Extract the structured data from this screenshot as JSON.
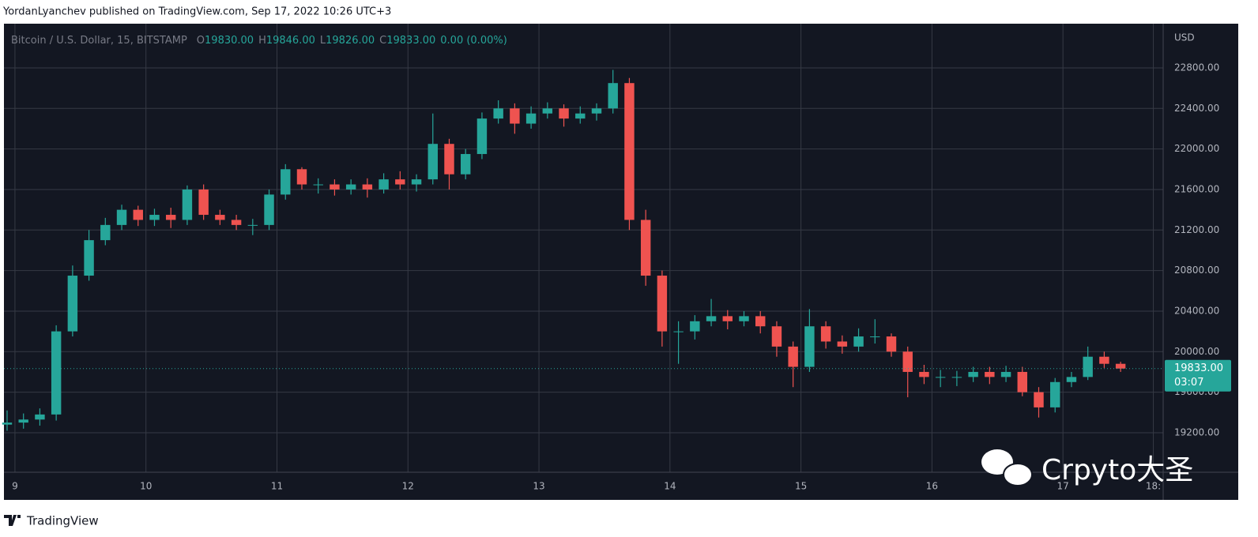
{
  "header": "YordanLyanchev published on TradingView.com, Sep 17, 2022 10:26 UTC+3",
  "footer": "TradingView",
  "watermark": "Crpyto大圣",
  "chart_data": {
    "type": "candlestick",
    "symbol": "Bitcoin / U.S. Dollar, 15, BITSTAMP",
    "legend": [
      {
        "key": "O",
        "text": "19830.00"
      },
      {
        "key": "H",
        "text": "19846.00"
      },
      {
        "key": "L",
        "text": "19826.00"
      },
      {
        "key": "C",
        "text": "19833.00"
      }
    ],
    "change": "0.00 (0.00%)",
    "y_axis_label": "USD",
    "x": [
      8.94,
      9.065,
      9.19,
      9.315,
      9.44,
      9.565,
      9.69,
      9.815,
      9.94,
      10.065,
      10.19,
      10.315,
      10.44,
      10.565,
      10.69,
      10.815,
      10.94,
      11.065,
      11.19,
      11.315,
      11.44,
      11.565,
      11.69,
      11.815,
      11.94,
      12.065,
      12.19,
      12.315,
      12.44,
      12.565,
      12.69,
      12.815,
      12.94,
      13.065,
      13.19,
      13.315,
      13.44,
      13.565,
      13.69,
      13.815,
      13.94,
      14.065,
      14.19,
      14.315,
      14.44,
      14.565,
      14.69,
      14.815,
      14.94,
      15.065,
      15.19,
      15.315,
      15.44,
      15.565,
      15.69,
      15.815,
      15.94,
      16.065,
      16.19,
      16.315,
      16.44,
      16.565,
      16.69,
      16.815,
      16.94,
      17.065,
      17.19,
      17.315,
      17.44
    ],
    "open": [
      19280,
      19300,
      19330,
      19380,
      20200,
      20750,
      21100,
      21250,
      21400,
      21300,
      21350,
      21300,
      21600,
      21350,
      21300,
      21250,
      21250,
      21550,
      21800,
      21650,
      21650,
      21600,
      21650,
      21600,
      21700,
      21650,
      21700,
      22050,
      21750,
      21950,
      22300,
      22400,
      22250,
      22350,
      22400,
      22300,
      22350,
      22400,
      22650,
      21300,
      20750,
      20200,
      20200,
      20300,
      20350,
      20300,
      20350,
      20250,
      20050,
      19850,
      20250,
      20100,
      20050,
      20150,
      20150,
      20000,
      19800,
      19750,
      19750,
      19750,
      19800,
      19750,
      19800,
      19600,
      19450,
      19700,
      19750,
      19950,
      19880
    ],
    "high": [
      19420,
      19390,
      19440,
      20260,
      20850,
      21200,
      21320,
      21450,
      21440,
      21410,
      21420,
      21640,
      21650,
      21400,
      21350,
      21310,
      21600,
      21850,
      21820,
      21710,
      21700,
      21700,
      21710,
      21760,
      21780,
      21750,
      22350,
      22100,
      22000,
      22360,
      22480,
      22450,
      22420,
      22460,
      22440,
      22420,
      22450,
      22780,
      22700,
      21400,
      20800,
      20300,
      20360,
      20520,
      20410,
      20400,
      20400,
      20300,
      20100,
      20420,
      20300,
      20160,
      20230,
      20320,
      20180,
      20050,
      19870,
      19820,
      19810,
      19850,
      19850,
      19860,
      19850,
      19650,
      19740,
      19800,
      20050,
      20000,
      19900
    ],
    "low": [
      19220,
      19240,
      19270,
      19320,
      20150,
      20700,
      21050,
      21200,
      21240,
      21240,
      21220,
      21250,
      21300,
      21250,
      21200,
      21150,
      21200,
      21500,
      21600,
      21560,
      21540,
      21550,
      21520,
      21560,
      21600,
      21580,
      21650,
      21600,
      21700,
      21900,
      22250,
      22150,
      22200,
      22300,
      22220,
      22250,
      22280,
      22350,
      21200,
      20650,
      20050,
      19880,
      20120,
      20250,
      20220,
      20250,
      20180,
      19950,
      19650,
      19800,
      20030,
      19980,
      20000,
      20080,
      19950,
      19550,
      19680,
      19650,
      19660,
      19700,
      19680,
      19700,
      19560,
      19350,
      19400,
      19650,
      19720,
      19840,
      19800
    ],
    "close": [
      19300,
      19330,
      19380,
      20200,
      20750,
      21100,
      21250,
      21400,
      21300,
      21350,
      21300,
      21600,
      21350,
      21300,
      21250,
      21250,
      21550,
      21800,
      21650,
      21650,
      21600,
      21650,
      21600,
      21700,
      21650,
      21700,
      22050,
      21750,
      21950,
      22300,
      22400,
      22250,
      22350,
      22400,
      22300,
      22350,
      22400,
      22650,
      21300,
      20750,
      20200,
      20200,
      20300,
      20350,
      20300,
      20350,
      20250,
      20050,
      19850,
      20250,
      20100,
      20050,
      20150,
      20150,
      20000,
      19800,
      19750,
      19750,
      19750,
      19800,
      19750,
      19800,
      19600,
      19450,
      19700,
      19750,
      19950,
      19880,
      19833
    ],
    "up_color": "#26a69a",
    "down_color": "#ef5350",
    "xlim": [
      8.916,
      17.765
    ],
    "xticks": [
      9,
      10,
      11,
      12,
      13,
      14,
      15,
      16,
      17,
      {
        "value": 17.69,
        "label": "18:"
      }
    ],
    "ylim": [
      18810,
      23236
    ],
    "yticks": [
      {
        "value": 19200,
        "label": "19200.00"
      },
      {
        "value": 19600,
        "label": "19600.00"
      },
      {
        "value": 20000,
        "label": "20000.00"
      },
      {
        "value": 20400,
        "label": "20400.00"
      },
      {
        "value": 20800,
        "label": "20800.00"
      },
      {
        "value": 21200,
        "label": "21200.00"
      },
      {
        "value": 21600,
        "label": "21600.00"
      },
      {
        "value": 22000,
        "label": "22000.00"
      },
      {
        "value": 22400,
        "label": "22400.00"
      },
      {
        "value": 22800,
        "label": "22800.00"
      }
    ],
    "grid": true,
    "last_price": {
      "value": 19833,
      "label": "19833.00"
    },
    "countdown": "03:07"
  }
}
